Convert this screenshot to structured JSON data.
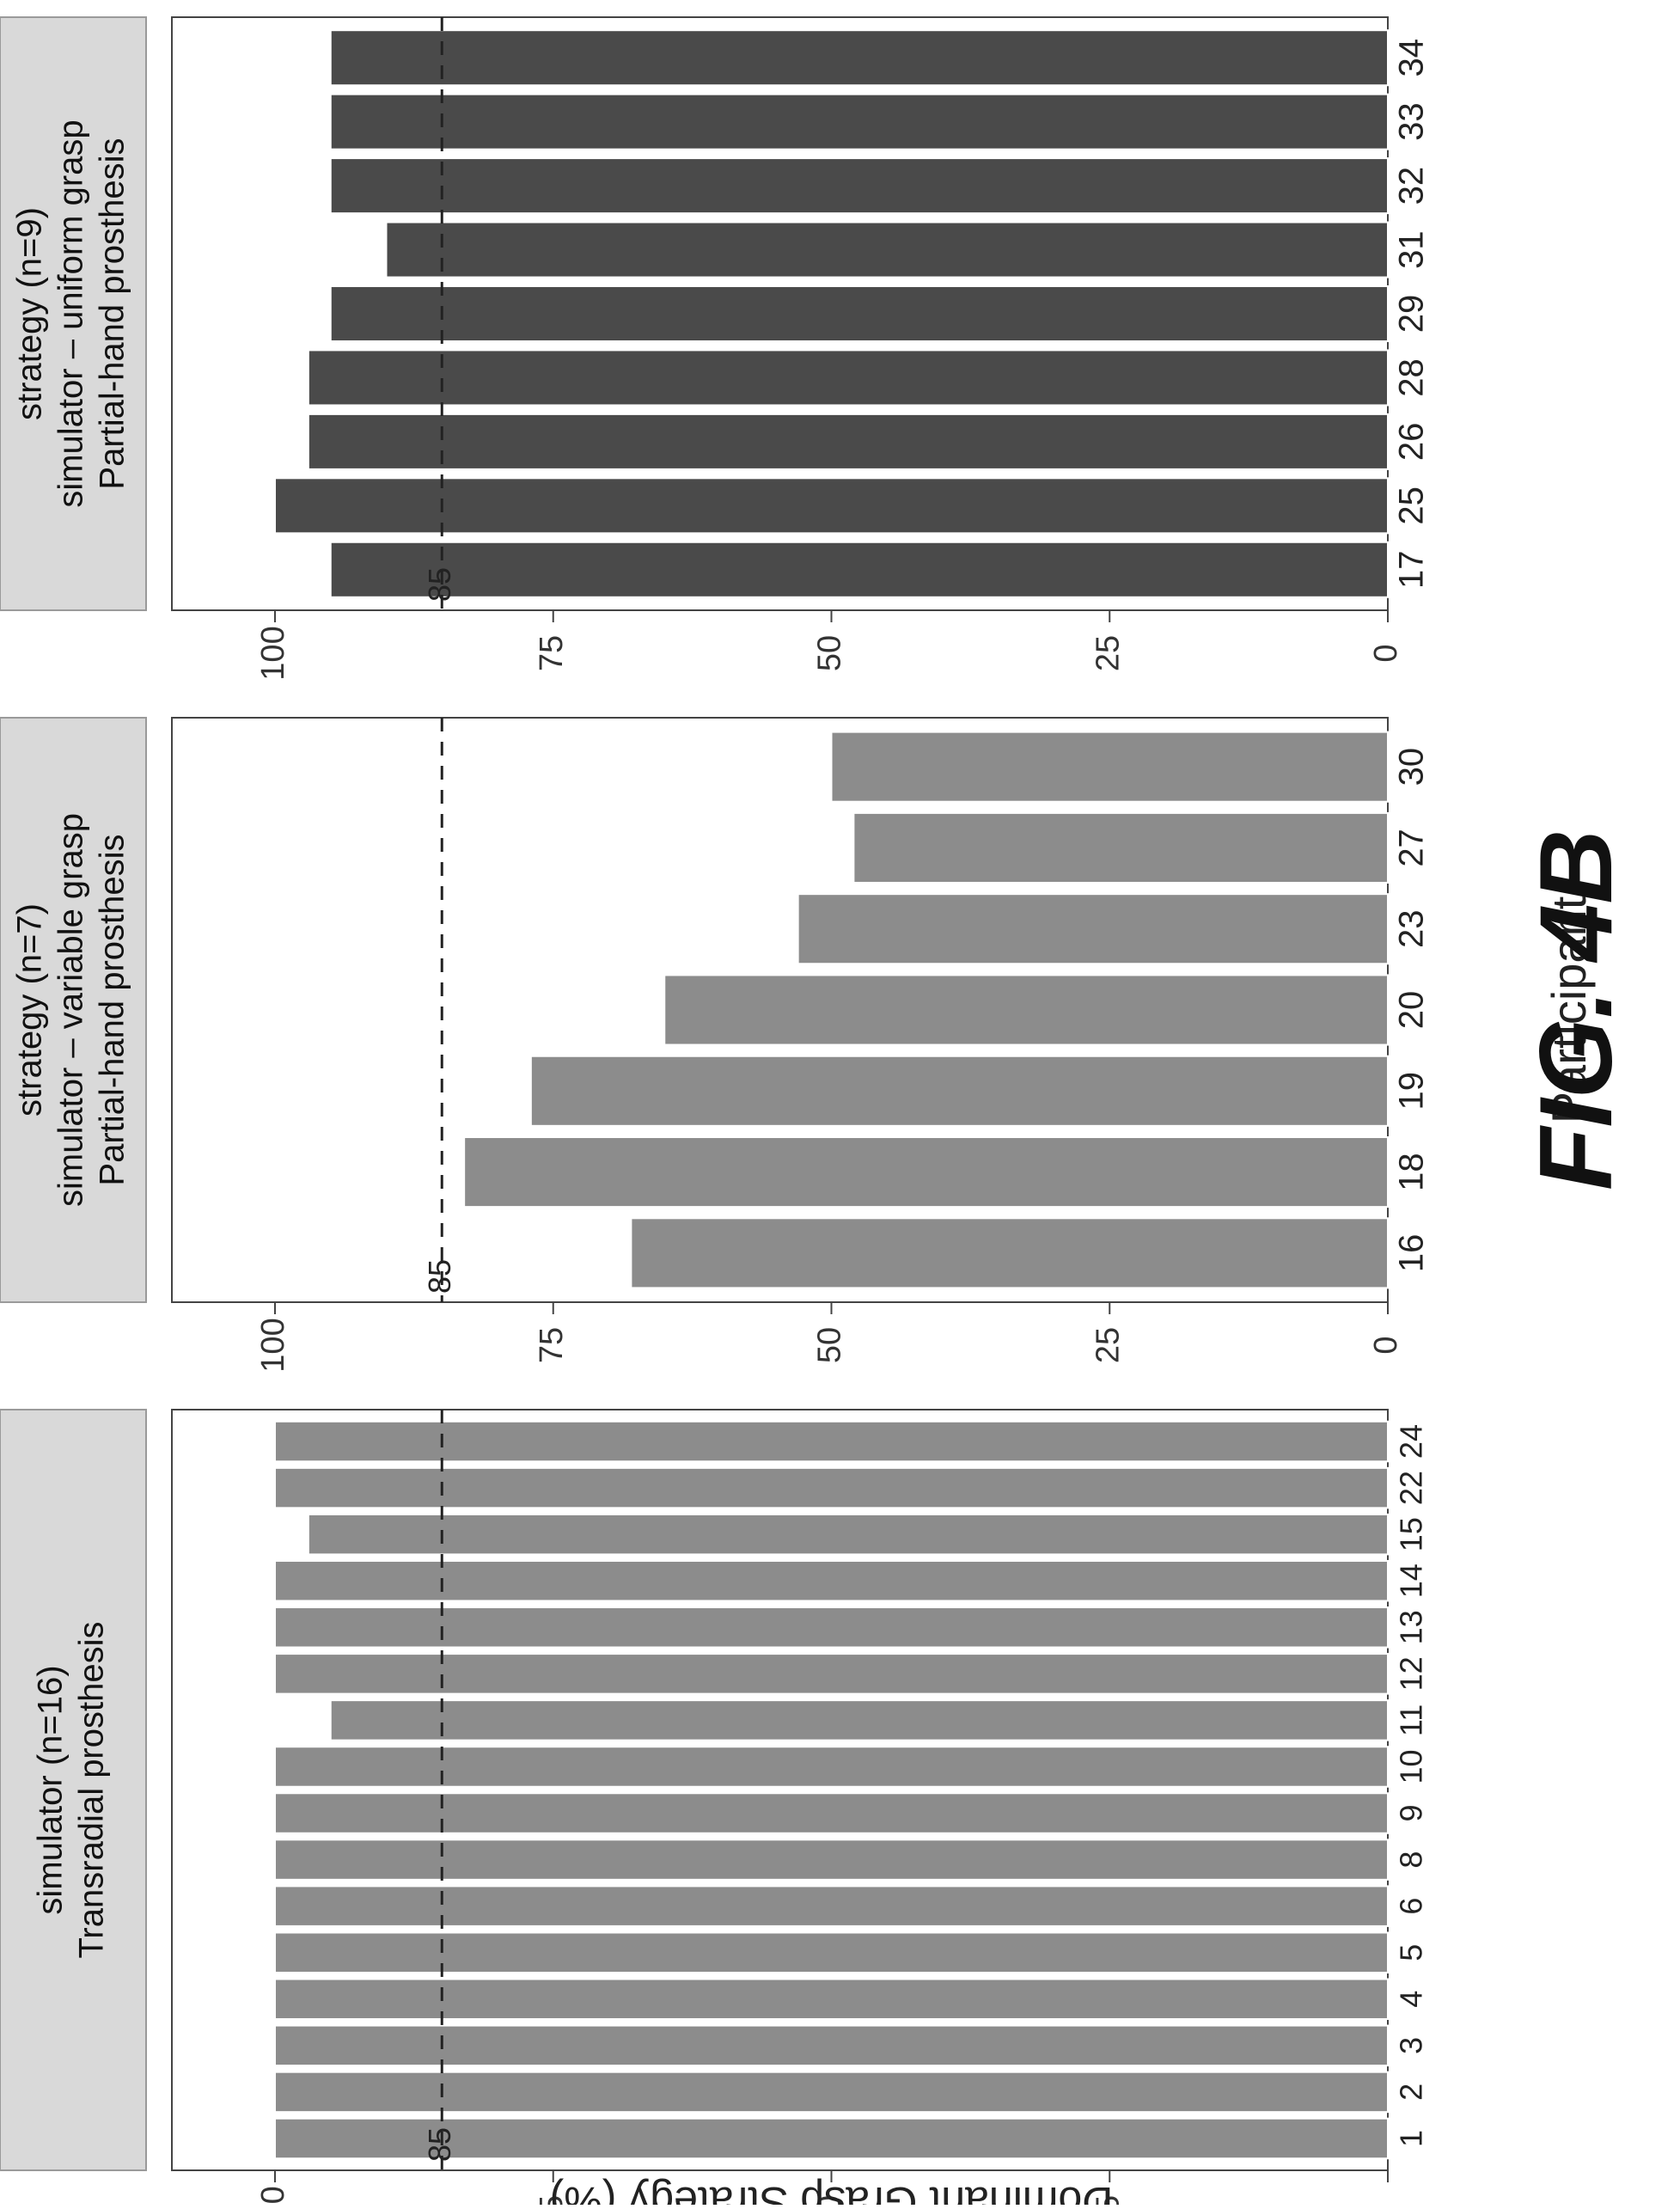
{
  "figure_label": "FIG. 4B",
  "chart_data": {
    "type": "bar",
    "orientation": "horizontal (figure printed rotated 90°)",
    "ylabel": "Dominant Grasp Strategy (%)",
    "xlabel": "Participant",
    "ylim": [
      0,
      100
    ],
    "yticks": [
      "0",
      "25",
      "50",
      "75",
      "100"
    ],
    "reference_line": {
      "value": 85,
      "label": "85",
      "style": "dashed"
    },
    "colors": {
      "panel_a": "#8c8c8c",
      "panel_b": "#8c8c8c",
      "panel_c": "#4a4a4a",
      "strip": "#d9d9d9"
    },
    "panels": [
      {
        "title": "Transradial prosthesis simulator (n=16)",
        "title_lines": [
          "Transradial prosthesis",
          "simulator (n=16)"
        ],
        "categories": [
          "1",
          "2",
          "3",
          "4",
          "5",
          "6",
          "8",
          "9",
          "10",
          "11",
          "12",
          "13",
          "14",
          "15",
          "22",
          "24"
        ],
        "values": [
          100,
          100,
          100,
          100,
          100,
          100,
          100,
          100,
          100,
          95,
          100,
          100,
          100,
          97,
          100,
          100
        ]
      },
      {
        "title": "Partial-hand prosthesis simulator – variable grasp strategy (n=7)",
        "title_lines": [
          "Partial-hand prosthesis",
          "simulator – variable grasp",
          "strategy (n=7)"
        ],
        "categories": [
          "16",
          "18",
          "19",
          "20",
          "23",
          "27",
          "30"
        ],
        "values": [
          68,
          83,
          77,
          65,
          53,
          48,
          50
        ]
      },
      {
        "title": "Partial-hand prosthesis simulator – uniform grasp strategy (n=9)",
        "title_lines": [
          "Partial-hand prosthesis",
          "simulator – uniform grasp",
          "strategy (n=9)"
        ],
        "categories": [
          "17",
          "25",
          "26",
          "28",
          "29",
          "31",
          "32",
          "33",
          "34"
        ],
        "values": [
          95,
          100,
          97,
          97,
          95,
          90,
          95,
          95,
          95
        ]
      }
    ]
  }
}
